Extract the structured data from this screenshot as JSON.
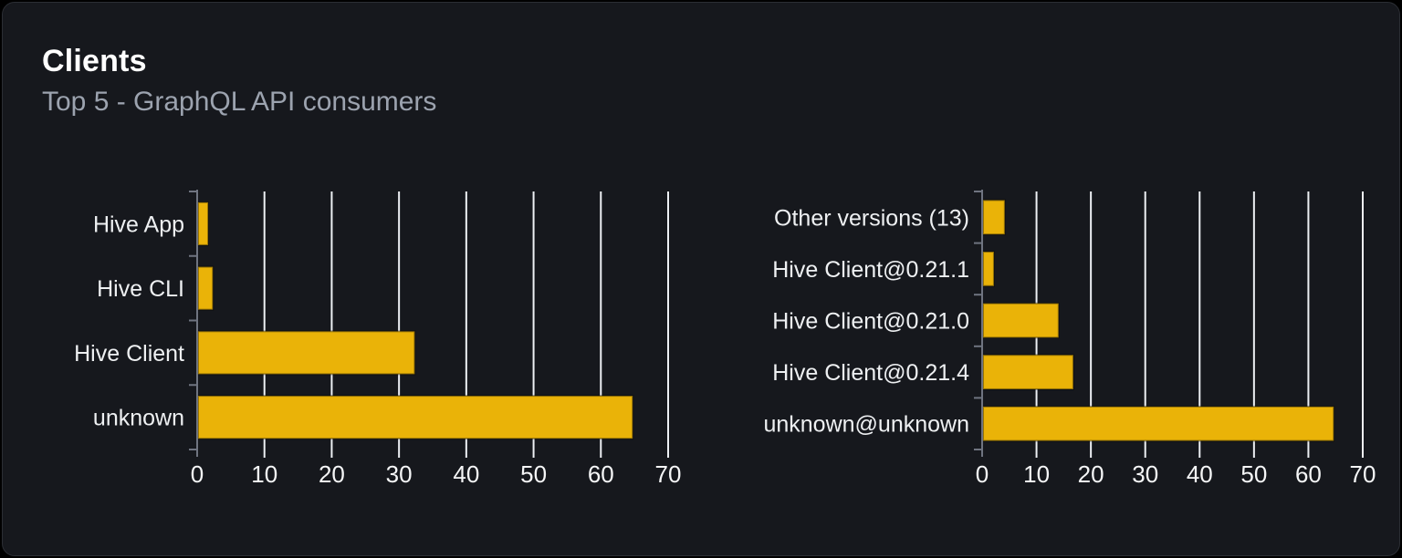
{
  "card": {
    "title": "Clients",
    "subtitle": "Top 5 - GraphQL API consumers"
  },
  "colors": {
    "page_bg": "#000000",
    "card_bg": "#16181d",
    "card_border": "#2b2e34",
    "title": "#ffffff",
    "subtitle": "#9ca3af",
    "bar": "#eab308",
    "bar_edge": "rgba(0,0,0,0.35)",
    "gridline": "#edf0f4",
    "axis": "#6f7480",
    "category_label": "#eef0f2",
    "tick_label": "#f5f6f7"
  },
  "chart_data": [
    {
      "type": "bar",
      "orientation": "horizontal",
      "categories": [
        "Hive App",
        "Hive CLI",
        "Hive Client",
        "unknown"
      ],
      "values": [
        1.5,
        2.2,
        32.2,
        64.6
      ],
      "xlim": [
        0,
        70
      ],
      "xticks": [
        0,
        10,
        20,
        30,
        40,
        50,
        60,
        70
      ],
      "grid": true,
      "legend": false,
      "bar_color": "#eab308"
    },
    {
      "type": "bar",
      "orientation": "horizontal",
      "categories": [
        "Other versions (13)",
        "Hive Client@0.21.1",
        "Hive Client@0.21.0",
        "Hive Client@0.21.4",
        "unknown@unknown"
      ],
      "values": [
        4.0,
        2.0,
        13.9,
        16.6,
        64.5
      ],
      "xlim": [
        0,
        70
      ],
      "xticks": [
        0,
        10,
        20,
        30,
        40,
        50,
        60,
        70
      ],
      "grid": true,
      "legend": false,
      "bar_color": "#eab308"
    }
  ]
}
